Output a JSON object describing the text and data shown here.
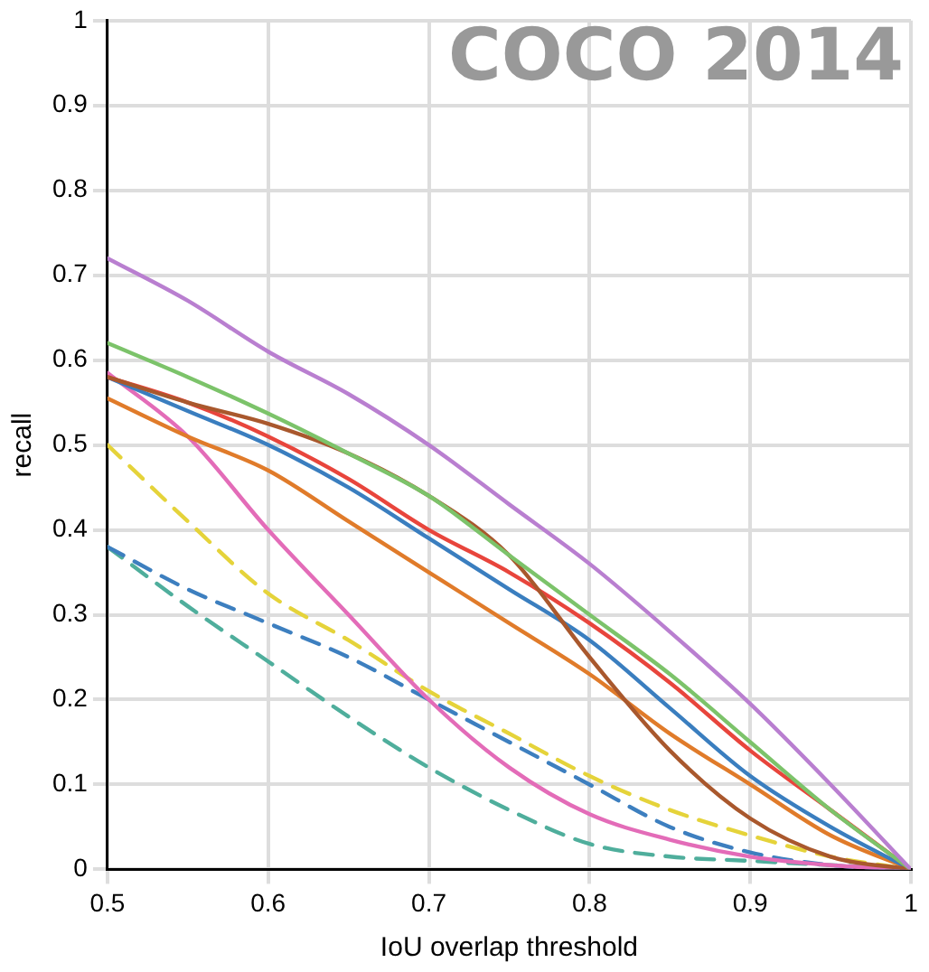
{
  "chart_data": {
    "type": "line",
    "xlabel": "IoU overlap threshold",
    "ylabel": "recall",
    "annotations": [
      "COCO 2014"
    ],
    "x": [
      0.5,
      0.55,
      0.6,
      0.65,
      0.7,
      0.75,
      0.8,
      0.85,
      0.9,
      0.95,
      1
    ],
    "xlim": [
      0.5,
      1
    ],
    "xticks": [
      0.5,
      0.6,
      0.7,
      0.8,
      0.9,
      1
    ],
    "ylim": [
      0,
      1
    ],
    "yticks": [
      0,
      0.1,
      0.2,
      0.3,
      0.4,
      0.5,
      0.6,
      0.7,
      0.8,
      0.9,
      1
    ],
    "grid": true,
    "legend": false,
    "marker": "none",
    "series": [
      {
        "color": "#b97fd0",
        "values": [
          0.72,
          0.67,
          0.61,
          0.56,
          0.5,
          0.43,
          0.36,
          0.28,
          0.195,
          0.1,
          0
        ]
      },
      {
        "color": "#7cc36a",
        "values": [
          0.62,
          0.58,
          0.537,
          0.49,
          0.44,
          0.37,
          0.3,
          0.23,
          0.15,
          0.07,
          0
        ]
      },
      {
        "color": "#a9582d",
        "values": [
          0.58,
          0.55,
          0.525,
          0.49,
          0.44,
          0.37,
          0.25,
          0.14,
          0.06,
          0.015,
          0
        ]
      },
      {
        "color": "#e8453c",
        "values": [
          0.58,
          0.55,
          0.51,
          0.46,
          0.4,
          0.35,
          0.29,
          0.22,
          0.14,
          0.07,
          0
        ]
      },
      {
        "color": "#3a7ebf",
        "values": [
          0.58,
          0.54,
          0.5,
          0.45,
          0.39,
          0.33,
          0.27,
          0.19,
          0.11,
          0.05,
          0
        ]
      },
      {
        "color": "#e07b2a",
        "values": [
          0.555,
          0.51,
          0.47,
          0.41,
          0.35,
          0.29,
          0.23,
          0.16,
          0.1,
          0.04,
          0
        ]
      },
      {
        "color": "#e36cb8",
        "values": [
          0.585,
          0.51,
          0.4,
          0.3,
          0.2,
          0.12,
          0.065,
          0.035,
          0.015,
          0.005,
          0
        ]
      },
      {
        "color": "#e5d33a",
        "line_style": "dashed",
        "values": [
          0.5,
          0.41,
          0.325,
          0.27,
          0.21,
          0.16,
          0.11,
          0.07,
          0.04,
          0.015,
          0
        ]
      },
      {
        "color": "#3d7fbf",
        "line_style": "dashed",
        "values": [
          0.38,
          0.33,
          0.29,
          0.25,
          0.2,
          0.15,
          0.1,
          0.05,
          0.02,
          0.005,
          0
        ]
      },
      {
        "color": "#4fae9c",
        "line_style": "dashed",
        "values": [
          0.38,
          0.31,
          0.245,
          0.18,
          0.12,
          0.07,
          0.03,
          0.015,
          0.01,
          0.005,
          0
        ]
      }
    ]
  }
}
